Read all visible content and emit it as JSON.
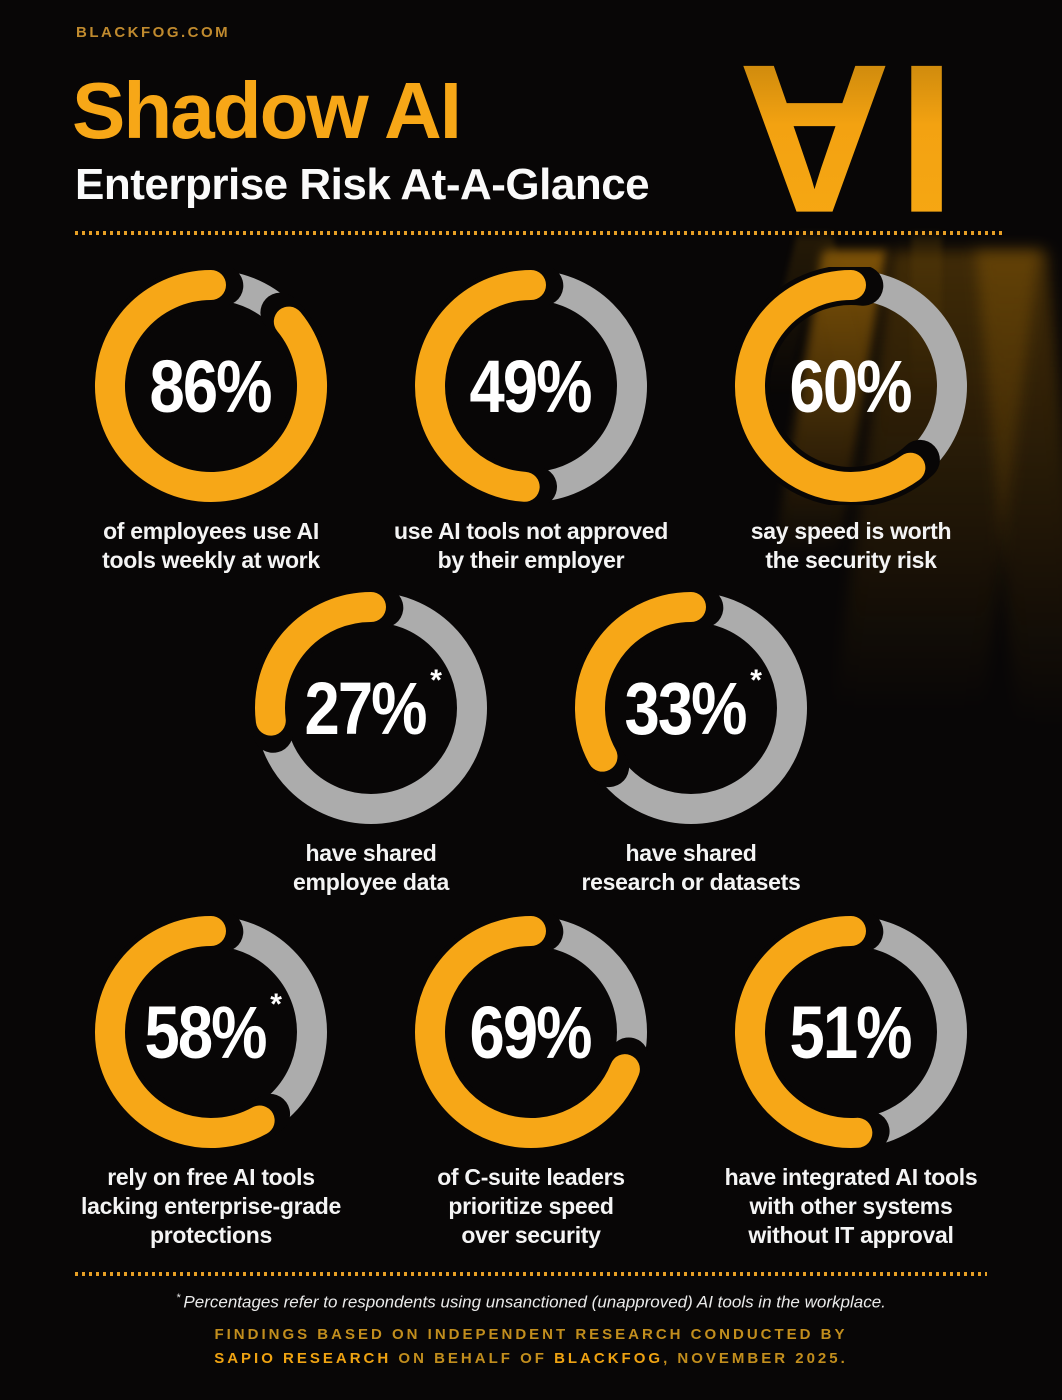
{
  "colors": {
    "background": "#080606",
    "accent": "#F7A717",
    "remainder_grey": "#ACACAC",
    "url_gold": "#C08A2E",
    "footer_dim": "#C28E1D",
    "footer_bright": "#EFA312"
  },
  "header": {
    "site_url": "BLACKFOG.COM",
    "title": "Shadow AI",
    "subtitle": "Enterprise Risk At-A-Glance",
    "logo_text": "AI"
  },
  "chart_data": {
    "type": "donut",
    "unit": "%",
    "start": "top",
    "direction": "counterclockwise",
    "filled_color": "#F7A717",
    "remainder_color": "#ACACAC",
    "rows": [
      [
        0,
        1,
        2
      ],
      [
        3,
        4
      ],
      [
        5,
        6,
        7
      ]
    ],
    "donuts": [
      {
        "value": 86,
        "display": "86%",
        "footnote_marker": "",
        "label": "of employees use AI\ntools weekly at work"
      },
      {
        "value": 49,
        "display": "49%",
        "footnote_marker": "",
        "label": "use AI tools not approved\nby their employer"
      },
      {
        "value": 60,
        "display": "60%",
        "footnote_marker": "",
        "label": "say speed is worth\nthe security risk"
      },
      {
        "value": 27,
        "display": "27%",
        "footnote_marker": "*",
        "label": "have shared\nemployee data"
      },
      {
        "value": 33,
        "display": "33%",
        "footnote_marker": "*",
        "label": "have shared\nresearch or datasets"
      },
      {
        "value": 58,
        "display": "58%",
        "footnote_marker": "*",
        "label": "rely on free AI tools\nlacking enterprise-grade\nprotections"
      },
      {
        "value": 69,
        "display": "69%",
        "footnote_marker": "",
        "label": "of C-suite leaders\nprioritize speed\nover security"
      },
      {
        "value": 51,
        "display": "51%",
        "footnote_marker": "",
        "label": "have integrated AI tools\nwith other systems\nwithout IT approval"
      }
    ]
  },
  "footnote": {
    "marker": "*",
    "text": "Percentages refer to respondents using unsanctioned (unapproved) AI tools in the workplace."
  },
  "footer": {
    "line1": "FINDINGS BASED ON INDEPENDENT RESEARCH CONDUCTED BY",
    "line2_segments": [
      {
        "text": "SAPIO RESEARCH",
        "bold": true
      },
      {
        "text": " ON BEHALF OF ",
        "bold": false
      },
      {
        "text": "BLACKFOG",
        "bold": true
      },
      {
        "text": ", NOVEMBER 2025.",
        "bold": false
      }
    ]
  }
}
